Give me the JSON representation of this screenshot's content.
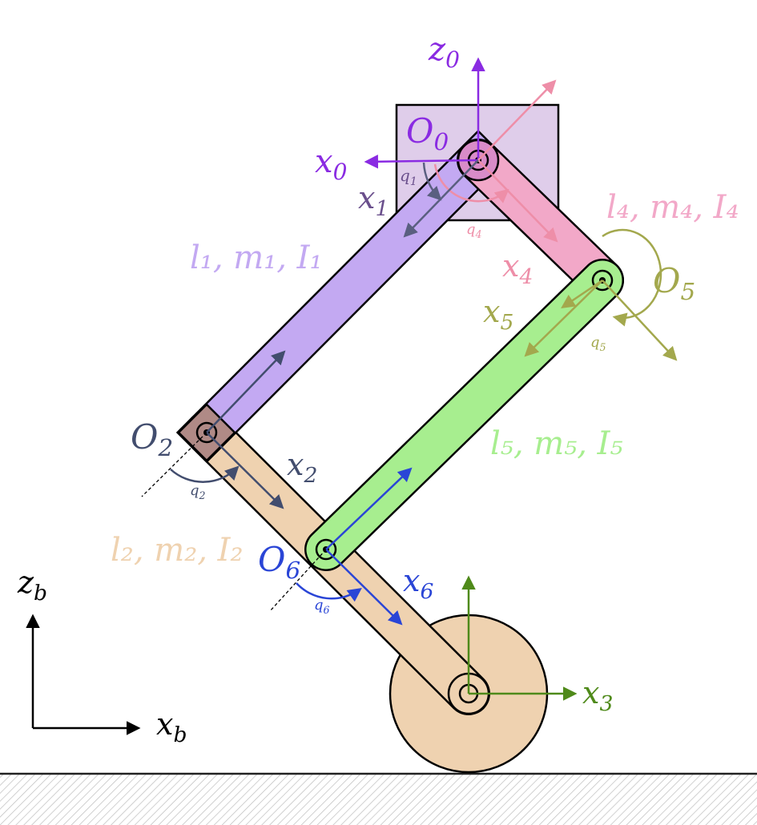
{
  "labels": {
    "z0": {
      "main": "z",
      "sub": "0"
    },
    "O0": {
      "main": "O",
      "sub": "0"
    },
    "x0": {
      "main": "x",
      "sub": "0"
    },
    "x1": {
      "main": "x",
      "sub": "1"
    },
    "q1": {
      "main": "q",
      "sub": "1"
    },
    "q4": {
      "main": "q",
      "sub": "4"
    },
    "l1": {
      "text": "l₁, m₁, I₁"
    },
    "l4": {
      "text": "l₄, m₄, I₄"
    },
    "x4": {
      "main": "x",
      "sub": "4"
    },
    "O5": {
      "main": "O",
      "sub": "5"
    },
    "x5": {
      "main": "x",
      "sub": "5"
    },
    "q5": {
      "main": "q",
      "sub": "5"
    },
    "O2": {
      "main": "O",
      "sub": "2"
    },
    "x2": {
      "main": "x",
      "sub": "2"
    },
    "q2": {
      "main": "q",
      "sub": "2"
    },
    "l5": {
      "text": "l₅, m₅, I₅"
    },
    "l2": {
      "text": "l₂, m₂, I₂"
    },
    "O6": {
      "main": "O",
      "sub": "6"
    },
    "x6": {
      "main": "x",
      "sub": "6"
    },
    "q6": {
      "main": "q",
      "sub": "6"
    },
    "zb": {
      "main": "z",
      "sub": "b"
    },
    "xb": {
      "main": "x",
      "sub": "b"
    },
    "x3": {
      "main": "x",
      "sub": "3"
    }
  },
  "colors": {
    "base": "#e2cdea",
    "link1": "#c3a9f2",
    "link4": "#f2a8c8",
    "link2": "#efd2b0",
    "link5": "#a7ee8f",
    "wheel": "#efd2b0",
    "frame0": "#8a2be2",
    "frame1": "#6a4f8c",
    "frame4": "#ee8ea8",
    "frame5": "#a3a84d",
    "frame2": "#424d6e",
    "frame6": "#2a45d6",
    "frame3": "#4f8a1a",
    "ground": "#222222"
  }
}
